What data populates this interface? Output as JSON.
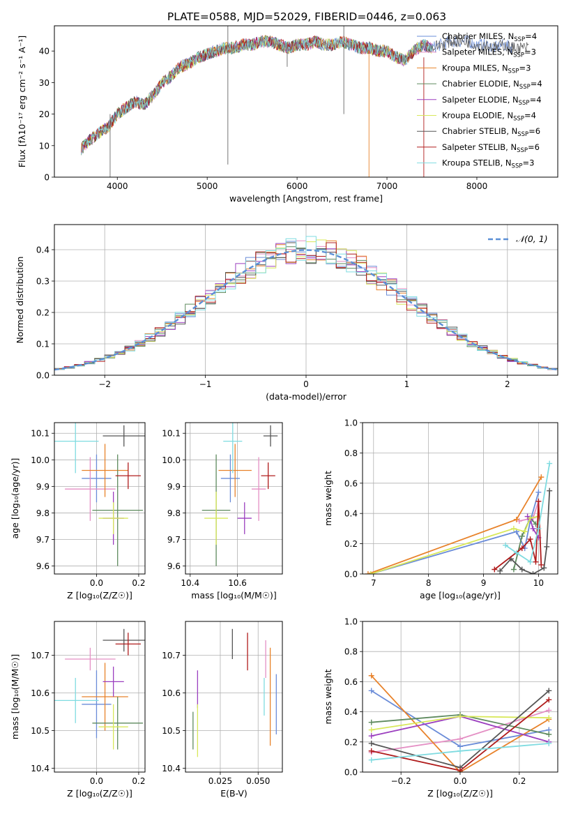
{
  "figure_title": "PLATE=0588, MJD=52029, FIBERID=0446, z=0.063",
  "colors": [
    "#6a8cd8",
    "#e48fc4",
    "#e8822a",
    "#5e8a5e",
    "#9b3fbf",
    "#d8e85a",
    "#555555",
    "#b01c1c",
    "#7fdbe0"
  ],
  "chart_data": [
    {
      "id": "spectrum",
      "type": "line",
      "title": "PLATE=0588, MJD=52029, FIBERID=0446, z=0.063",
      "xlabel": "wavelength [Angstrom, rest frame]",
      "ylabel": "Flux [fλ10⁻¹⁷ erg cm⁻² s⁻¹ A⁻¹]",
      "xlim": [
        3300,
        8900
      ],
      "ylim": [
        0,
        48
      ],
      "xticks": [
        4000,
        5000,
        6000,
        7000,
        8000
      ],
      "yticks": [
        0,
        10,
        20,
        30,
        40
      ],
      "grid": false,
      "legend_placement": "right",
      "x": [
        3600,
        3700,
        3800,
        3900,
        4000,
        4100,
        4200,
        4300,
        4400,
        4500,
        4600,
        4700,
        4800,
        4900,
        5000,
        5100,
        5200,
        5300,
        5400,
        5500,
        5600,
        5700,
        5800,
        5900,
        6000,
        6100,
        6200,
        6300,
        6400,
        6500,
        6600,
        6700,
        6800,
        6900,
        7000,
        7100,
        7200,
        7300,
        7400,
        7500,
        7600,
        7700,
        7800,
        7900,
        8000,
        8100,
        8200,
        8300,
        8400,
        8500,
        8600
      ],
      "y": [
        9,
        12,
        14,
        16,
        20,
        22,
        24,
        23,
        26,
        30,
        32,
        35,
        36,
        38,
        39,
        40,
        41,
        41,
        42,
        42,
        43,
        43,
        42,
        41,
        42,
        42,
        43,
        42,
        42,
        43,
        42,
        41,
        41,
        40,
        40,
        38,
        37,
        40,
        42,
        41,
        42,
        43,
        43,
        43,
        42,
        42,
        41,
        42,
        41,
        41,
        41
      ],
      "series": [
        {
          "name": "Chabrier MILES, N",
          "sub": "SSP",
          "suffix": "=4"
        },
        {
          "name": "Salpeter MILES, N",
          "sub": "SSP",
          "suffix": "=3"
        },
        {
          "name": "Kroupa MILES, N",
          "sub": "SSP",
          "suffix": "=3"
        },
        {
          "name": "Chabrier ELODIE, N",
          "sub": "SSP",
          "suffix": "=4"
        },
        {
          "name": "Salpeter ELODIE, N",
          "sub": "SSP",
          "suffix": "=4"
        },
        {
          "name": "Kroupa ELODIE, N",
          "sub": "SSP",
          "suffix": "=4"
        },
        {
          "name": "Chabrier STELIB, N",
          "sub": "SSP",
          "suffix": "=6"
        },
        {
          "name": "Salpeter STELIB, N",
          "sub": "SSP",
          "suffix": "=6"
        },
        {
          "name": "Kroupa STELIB, N",
          "sub": "SSP",
          "suffix": "=3"
        }
      ]
    },
    {
      "id": "residuals",
      "type": "line",
      "xlabel": "(data-model)/error",
      "ylabel": "Normed distribution",
      "xlim": [
        -2.5,
        2.5
      ],
      "ylim": [
        0,
        0.48
      ],
      "xticks": [
        -2,
        -1,
        0,
        1,
        2
      ],
      "yticks": [
        0.0,
        0.1,
        0.2,
        0.3,
        0.4
      ],
      "grid": true,
      "legend": "𝒩(0, 1)",
      "legend_placement": "top-right"
    },
    {
      "id": "age_vs_Z",
      "type": "scatter",
      "xlabel": "Z [log₁₀(Z/Z☉)]",
      "ylabel": "age  [log₁₀(age/yr)]",
      "xlim": [
        -0.2,
        0.23
      ],
      "ylim": [
        9.57,
        10.14
      ],
      "xticks": [
        0.0,
        0.2
      ],
      "yticks": [
        9.6,
        9.7,
        9.8,
        9.9,
        10.0,
        10.1
      ],
      "grid": true,
      "points": [
        {
          "x": 0.0,
          "xerr": 0.07,
          "y": 9.93,
          "yerr": 0.09
        },
        {
          "x": -0.03,
          "xerr": 0.12,
          "y": 9.89,
          "yerr": 0.12
        },
        {
          "x": 0.04,
          "xerr": 0.11,
          "y": 9.96,
          "yerr": 0.1
        },
        {
          "x": 0.1,
          "xerr": 0.12,
          "y": 9.81,
          "yerr": 0.21
        },
        {
          "x": 0.08,
          "xerr": 0.05,
          "y": 9.78,
          "yerr": 0.1
        },
        {
          "x": 0.08,
          "xerr": 0.07,
          "y": 9.78,
          "yerr": 0.06
        },
        {
          "x": 0.13,
          "xerr": 0.1,
          "y": 10.09,
          "yerr": 0.04
        },
        {
          "x": 0.15,
          "xerr": 0.06,
          "y": 9.94,
          "yerr": 0.05
        },
        {
          "x": -0.1,
          "xerr": 0.11,
          "y": 10.07,
          "yerr": 0.12
        }
      ]
    },
    {
      "id": "age_vs_mass",
      "type": "scatter",
      "xlabel": "mass [log₁₀(M/M☉)]",
      "ylabel": "",
      "xlim": [
        10.38,
        10.79
      ],
      "ylim": [
        9.57,
        10.14
      ],
      "xticks": [
        10.4,
        10.6
      ],
      "yticks": [
        9.6,
        9.7,
        9.8,
        9.9,
        10.0,
        10.1
      ],
      "grid": true,
      "points": [
        {
          "x": 10.57,
          "xerr": 0.04,
          "y": 9.93,
          "yerr": 0.09
        },
        {
          "x": 10.69,
          "xerr": 0.03,
          "y": 9.89,
          "yerr": 0.12
        },
        {
          "x": 10.59,
          "xerr": 0.07,
          "y": 9.96,
          "yerr": 0.1
        },
        {
          "x": 10.51,
          "xerr": 0.06,
          "y": 9.81,
          "yerr": 0.21
        },
        {
          "x": 10.63,
          "xerr": 0.03,
          "y": 9.78,
          "yerr": 0.06
        },
        {
          "x": 10.51,
          "xerr": 0.05,
          "y": 9.78,
          "yerr": 0.1
        },
        {
          "x": 10.74,
          "xerr": 0.03,
          "y": 10.09,
          "yerr": 0.04
        },
        {
          "x": 10.73,
          "xerr": 0.03,
          "y": 9.94,
          "yerr": 0.05
        },
        {
          "x": 10.58,
          "xerr": 0.04,
          "y": 10.07,
          "yerr": 0.12
        }
      ]
    },
    {
      "id": "weight_vs_age",
      "type": "line",
      "xlabel": "age  [log₁₀(age/yr)]",
      "ylabel": "mass weight",
      "xlim": [
        6.8,
        10.35
      ],
      "ylim": [
        0,
        1
      ],
      "xticks": [
        7,
        8,
        9,
        10
      ],
      "yticks": [
        0.0,
        0.2,
        0.4,
        0.6,
        0.8,
        1.0
      ],
      "grid": true,
      "series": [
        {
          "x": [
            6.95,
            9.6,
            9.75,
            9.85,
            10.0
          ],
          "y": [
            0.0,
            0.28,
            0.17,
            0.35,
            0.54
          ]
        },
        {
          "x": [
            9.65,
            9.9,
            10.0
          ],
          "y": [
            0.35,
            0.37,
            0.48
          ]
        },
        {
          "x": [
            6.9,
            9.6,
            10.05
          ],
          "y": [
            0.0,
            0.36,
            0.64
          ]
        },
        {
          "x": [
            9.55,
            9.7,
            9.85,
            9.95
          ],
          "y": [
            0.03,
            0.25,
            0.37,
            0.33
          ]
        },
        {
          "x": [
            9.8,
            9.85,
            9.9,
            10.0
          ],
          "y": [
            0.38,
            0.36,
            0.3,
            0.24
          ]
        },
        {
          "x": [
            6.95,
            9.55,
            9.75,
            9.85,
            10.0
          ],
          "y": [
            0.0,
            0.3,
            0.28,
            0.37,
            0.38
          ]
        },
        {
          "x": [
            9.3,
            9.5,
            9.7,
            9.9,
            10.1,
            10.15,
            10.2
          ],
          "y": [
            0.02,
            0.1,
            0.03,
            0.0,
            0.04,
            0.18,
            0.55
          ]
        },
        {
          "x": [
            9.2,
            9.7,
            9.85,
            9.95,
            10.0,
            10.05
          ],
          "y": [
            0.03,
            0.17,
            0.23,
            0.08,
            0.48,
            0.06
          ]
        },
        {
          "x": [
            9.4,
            9.6,
            9.85,
            10.0,
            10.2
          ],
          "y": [
            0.19,
            0.14,
            0.08,
            0.3,
            0.73
          ]
        }
      ]
    },
    {
      "id": "mass_vs_Z",
      "type": "scatter",
      "xlabel": "Z [log₁₀(Z/Z☉)]",
      "ylabel": "mass [log₁₀(M/M☉)]",
      "xlim": [
        -0.2,
        0.23
      ],
      "ylim": [
        10.39,
        10.79
      ],
      "xticks": [
        0.0,
        0.2
      ],
      "yticks": [
        10.4,
        10.5,
        10.6,
        10.7
      ],
      "grid": true,
      "points": [
        {
          "x": 0.0,
          "xerr": 0.07,
          "y": 10.57,
          "yerr": 0.09
        },
        {
          "x": -0.03,
          "xerr": 0.12,
          "y": 10.69,
          "yerr": 0.03
        },
        {
          "x": 0.04,
          "xerr": 0.11,
          "y": 10.59,
          "yerr": 0.09
        },
        {
          "x": 0.1,
          "xerr": 0.12,
          "y": 10.52,
          "yerr": 0.07
        },
        {
          "x": 0.08,
          "xerr": 0.05,
          "y": 10.63,
          "yerr": 0.04
        },
        {
          "x": 0.08,
          "xerr": 0.07,
          "y": 10.51,
          "yerr": 0.06
        },
        {
          "x": 0.13,
          "xerr": 0.1,
          "y": 10.74,
          "yerr": 0.03
        },
        {
          "x": 0.15,
          "xerr": 0.06,
          "y": 10.73,
          "yerr": 0.03
        },
        {
          "x": -0.1,
          "xerr": 0.11,
          "y": 10.58,
          "yerr": 0.06
        }
      ]
    },
    {
      "id": "mass_vs_ebv",
      "type": "scatter",
      "xlabel": "E(B-V)",
      "ylabel": "",
      "xlim": [
        0.002,
        0.066
      ],
      "ylim": [
        10.39,
        10.79
      ],
      "xticks": [
        0.025,
        0.05
      ],
      "yticks": [
        10.4,
        10.5,
        10.6,
        10.7
      ],
      "grid": true,
      "points": [
        {
          "x": 0.062,
          "xerr": 0,
          "y": 10.57,
          "yerr": 0.08
        },
        {
          "x": 0.055,
          "xerr": 0,
          "y": 10.69,
          "yerr": 0.05
        },
        {
          "x": 0.058,
          "xerr": 0,
          "y": 10.59,
          "yerr": 0.13
        },
        {
          "x": 0.007,
          "xerr": 0,
          "y": 10.5,
          "yerr": 0.05
        },
        {
          "x": 0.01,
          "xerr": 0,
          "y": 10.61,
          "yerr": 0.05
        },
        {
          "x": 0.01,
          "xerr": 0,
          "y": 10.5,
          "yerr": 0.07
        },
        {
          "x": 0.033,
          "xerr": 0,
          "y": 10.73,
          "yerr": 0.04
        },
        {
          "x": 0.043,
          "xerr": 0,
          "y": 10.71,
          "yerr": 0.05
        },
        {
          "x": 0.054,
          "xerr": 0,
          "y": 10.59,
          "yerr": 0.05
        }
      ]
    },
    {
      "id": "weight_vs_Z",
      "type": "line",
      "xlabel": "Z [log₁₀(Z/Z☉)]",
      "ylabel": "mass weight",
      "xlim": [
        -0.33,
        0.33
      ],
      "ylim": [
        0,
        1
      ],
      "xticks": [
        -0.2,
        0.0,
        0.2
      ],
      "yticks": [
        0.0,
        0.2,
        0.4,
        0.6,
        0.8,
        1.0
      ],
      "grid": true,
      "series": [
        {
          "x": [
            -0.3,
            0.0,
            0.3
          ],
          "y": [
            0.54,
            0.17,
            0.28
          ]
        },
        {
          "x": [
            -0.3,
            0.0,
            0.3
          ],
          "y": [
            0.13,
            0.22,
            0.41
          ]
        },
        {
          "x": [
            -0.3,
            0.0,
            0.3
          ],
          "y": [
            0.64,
            0.0,
            0.35
          ]
        },
        {
          "x": [
            -0.3,
            0.0,
            0.3
          ],
          "y": [
            0.33,
            0.38,
            0.25
          ]
        },
        {
          "x": [
            -0.3,
            0.0,
            0.3
          ],
          "y": [
            0.24,
            0.37,
            0.2
          ]
        },
        {
          "x": [
            -0.3,
            0.0,
            0.3
          ],
          "y": [
            0.28,
            0.37,
            0.36
          ]
        },
        {
          "x": [
            -0.3,
            0.0,
            0.3
          ],
          "y": [
            0.19,
            0.03,
            0.54
          ]
        },
        {
          "x": [
            -0.3,
            0.0,
            0.3
          ],
          "y": [
            0.14,
            0.01,
            0.48
          ]
        },
        {
          "x": [
            -0.3,
            0.0,
            0.3
          ],
          "y": [
            0.08,
            0.14,
            0.19
          ]
        }
      ]
    }
  ]
}
